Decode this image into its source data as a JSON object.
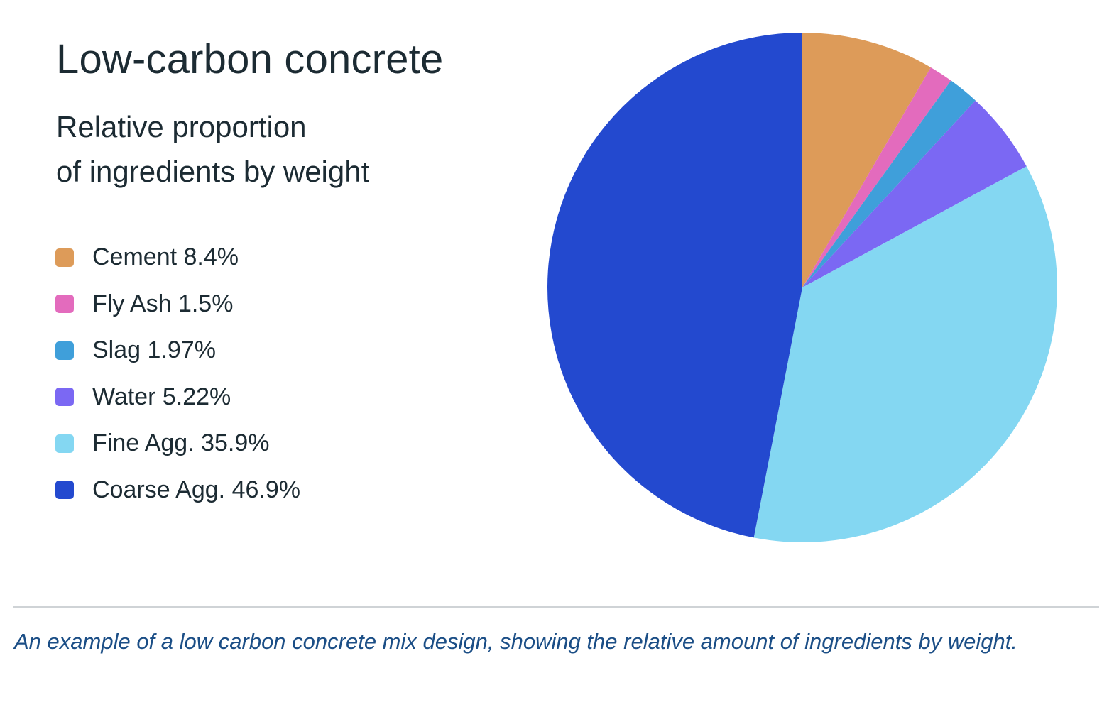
{
  "title": "Low-carbon concrete",
  "subtitle": {
    "line1": "Relative proportion",
    "line2": "of ingredients by weight"
  },
  "chart_data": {
    "type": "pie",
    "title": "Low-carbon concrete",
    "subtitle": "Relative proportion of ingredients by weight",
    "categories": [
      "Cement",
      "Fly Ash",
      "Slag",
      "Water",
      "Fine Agg.",
      "Coarse Agg."
    ],
    "values": [
      8.4,
      1.5,
      1.97,
      5.22,
      35.9,
      46.9
    ],
    "value_labels": [
      "8.4%",
      "1.5%",
      "1.97%",
      "5.22%",
      "35.9%",
      "46.9%"
    ],
    "colors": [
      "#dd9b59",
      "#e36bbd",
      "#3f9fda",
      "#7b68f3",
      "#84d7f2",
      "#2349cf"
    ],
    "start": "12 o'clock",
    "direction": "clockwise",
    "legend_position": "left"
  },
  "caption": "An example of a low carbon concrete mix design, showing the relative amount of ingredients by weight."
}
